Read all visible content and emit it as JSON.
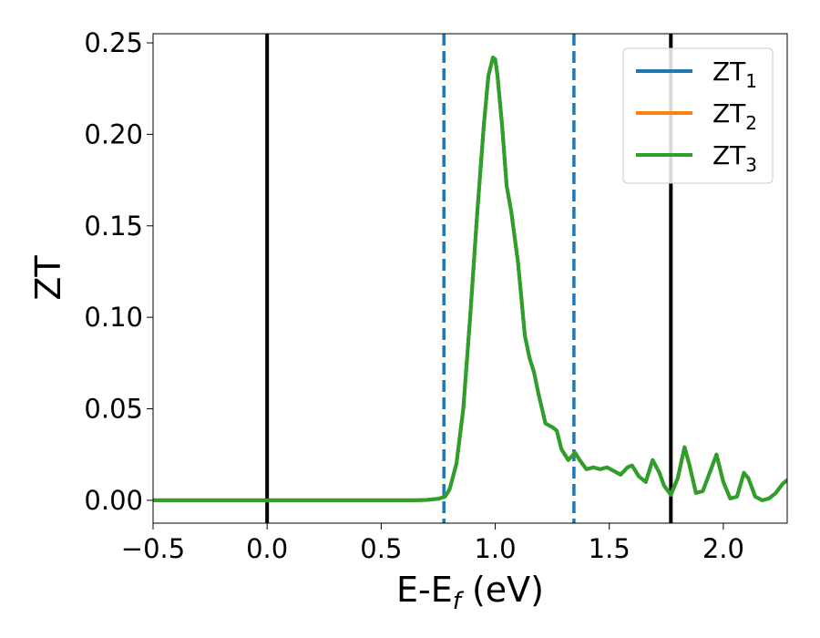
{
  "chart_data": {
    "type": "line",
    "xlabel": "E-E",
    "xlabel_sub": "f",
    "xlabel_unit": " (eV)",
    "ylabel": "ZT",
    "xlim": [
      -0.5,
      2.28
    ],
    "ylim": [
      -0.0125,
      0.255
    ],
    "xticks": [
      -0.5,
      0.0,
      0.5,
      1.0,
      1.5,
      2.0
    ],
    "xtick_labels": [
      "−0.5",
      "0.0",
      "0.5",
      "1.0",
      "1.5",
      "2.0"
    ],
    "yticks": [
      0.0,
      0.05,
      0.1,
      0.15,
      0.2,
      0.25
    ],
    "ytick_labels": [
      "0.00",
      "0.05",
      "0.10",
      "0.15",
      "0.20",
      "0.25"
    ],
    "grid": false,
    "legend_position": "top-right",
    "vlines": [
      {
        "x": 0.0,
        "style": "solid",
        "color": "#000000"
      },
      {
        "x": 1.77,
        "style": "solid",
        "color": "#000000"
      },
      {
        "x": 0.775,
        "style": "dashed",
        "color": "#1f77b4"
      },
      {
        "x": 1.345,
        "style": "dashed",
        "color": "#1f77b4"
      }
    ],
    "x": [
      -0.5,
      0.0,
      0.5,
      0.65,
      0.7,
      0.75,
      0.78,
      0.8,
      0.83,
      0.86,
      0.89,
      0.92,
      0.95,
      0.97,
      0.99,
      1.0,
      1.01,
      1.03,
      1.05,
      1.07,
      1.1,
      1.13,
      1.15,
      1.17,
      1.19,
      1.22,
      1.25,
      1.27,
      1.29,
      1.32,
      1.35,
      1.37,
      1.4,
      1.43,
      1.46,
      1.49,
      1.52,
      1.55,
      1.58,
      1.6,
      1.63,
      1.66,
      1.69,
      1.72,
      1.74,
      1.77,
      1.8,
      1.83,
      1.85,
      1.88,
      1.91,
      1.94,
      1.97,
      2.0,
      2.03,
      2.06,
      2.09,
      2.11,
      2.14,
      2.17,
      2.2,
      2.23,
      2.26,
      2.28
    ],
    "series": [
      {
        "name": "ZT1",
        "name_base": "ZT",
        "name_sub": "1",
        "color": "#1f77b4",
        "values": [
          0.0,
          0.0,
          0.0,
          0.0,
          0.0002,
          0.0008,
          0.002,
          0.006,
          0.02,
          0.05,
          0.1,
          0.155,
          0.205,
          0.232,
          0.242,
          0.241,
          0.232,
          0.205,
          0.172,
          0.158,
          0.13,
          0.09,
          0.078,
          0.07,
          0.058,
          0.042,
          0.04,
          0.038,
          0.028,
          0.022,
          0.026,
          0.022,
          0.017,
          0.018,
          0.017,
          0.018,
          0.016,
          0.014,
          0.018,
          0.019,
          0.013,
          0.01,
          0.022,
          0.015,
          0.008,
          0.003,
          0.012,
          0.029,
          0.02,
          0.004,
          0.005,
          0.015,
          0.025,
          0.01,
          0.001,
          0.002,
          0.015,
          0.012,
          0.002,
          0.0,
          0.001,
          0.004,
          0.009,
          0.011
        ]
      },
      {
        "name": "ZT2",
        "name_base": "ZT",
        "name_sub": "2",
        "color": "#ff7f0e",
        "values": [
          0.0,
          0.0,
          0.0,
          0.0,
          0.0002,
          0.0008,
          0.002,
          0.006,
          0.02,
          0.05,
          0.1,
          0.155,
          0.205,
          0.232,
          0.242,
          0.241,
          0.232,
          0.205,
          0.172,
          0.158,
          0.13,
          0.09,
          0.078,
          0.07,
          0.058,
          0.042,
          0.04,
          0.038,
          0.028,
          0.022,
          0.026,
          0.022,
          0.017,
          0.018,
          0.017,
          0.018,
          0.016,
          0.014,
          0.018,
          0.019,
          0.013,
          0.01,
          0.022,
          0.015,
          0.008,
          0.003,
          0.012,
          0.029,
          0.02,
          0.004,
          0.005,
          0.015,
          0.025,
          0.01,
          0.001,
          0.002,
          0.015,
          0.012,
          0.002,
          0.0,
          0.001,
          0.004,
          0.009,
          0.011
        ]
      },
      {
        "name": "ZT3",
        "name_base": "ZT",
        "name_sub": "3",
        "color": "#2ca02c",
        "values": [
          0.0,
          0.0,
          0.0,
          0.0,
          0.0002,
          0.0008,
          0.002,
          0.006,
          0.02,
          0.05,
          0.1,
          0.155,
          0.205,
          0.232,
          0.242,
          0.241,
          0.232,
          0.205,
          0.172,
          0.158,
          0.13,
          0.09,
          0.078,
          0.07,
          0.058,
          0.042,
          0.04,
          0.038,
          0.028,
          0.022,
          0.026,
          0.022,
          0.017,
          0.018,
          0.017,
          0.018,
          0.016,
          0.014,
          0.018,
          0.019,
          0.013,
          0.01,
          0.022,
          0.015,
          0.008,
          0.003,
          0.012,
          0.029,
          0.02,
          0.004,
          0.005,
          0.015,
          0.025,
          0.01,
          0.001,
          0.002,
          0.015,
          0.012,
          0.002,
          0.0,
          0.001,
          0.004,
          0.009,
          0.011
        ]
      }
    ]
  }
}
